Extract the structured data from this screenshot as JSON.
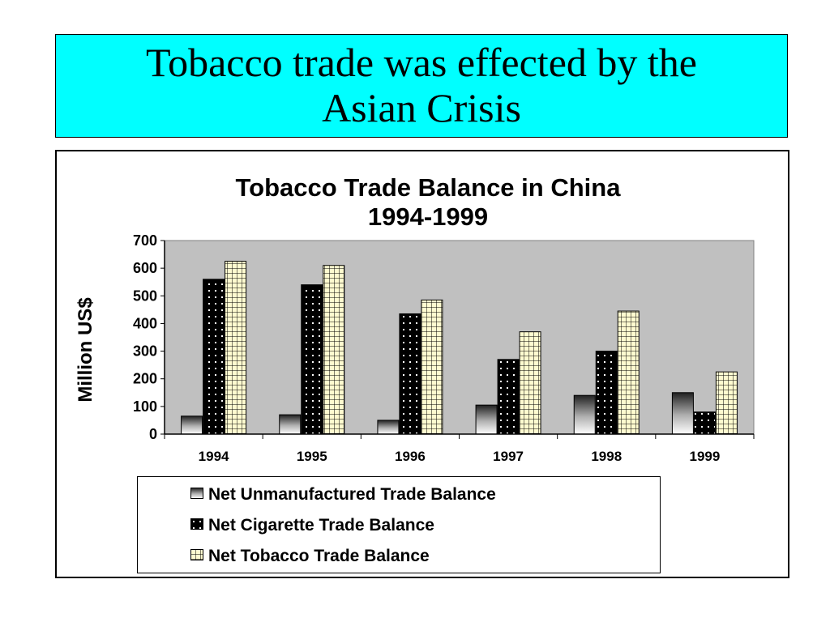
{
  "slide": {
    "title_line1": "Tobacco trade was effected by the",
    "title_line2": "Asian Crisis",
    "title_bg": "#00ffff"
  },
  "chart_data": {
    "type": "bar",
    "title_line1": "Tobacco Trade Balance in China",
    "title_line2": "1994-1999",
    "ylabel": "Million US$",
    "xlabel": "",
    "ylim": [
      0,
      700
    ],
    "yticks": [
      0,
      100,
      200,
      300,
      400,
      500,
      600,
      700
    ],
    "categories": [
      "1994",
      "1995",
      "1996",
      "1997",
      "1998",
      "1999"
    ],
    "plot_background": "#c0c0c0",
    "legend_position": "bottom",
    "series": [
      {
        "name": "Net Unmanufactured Trade Balance",
        "pattern": "gradient",
        "values": [
          65,
          70,
          50,
          105,
          140,
          150
        ]
      },
      {
        "name": "Net Cigarette Trade Balance",
        "pattern": "dots",
        "values": [
          560,
          540,
          435,
          270,
          300,
          80
        ]
      },
      {
        "name": "Net Tobacco Trade Balance",
        "pattern": "grid",
        "values": [
          625,
          610,
          485,
          370,
          445,
          225
        ]
      }
    ]
  }
}
